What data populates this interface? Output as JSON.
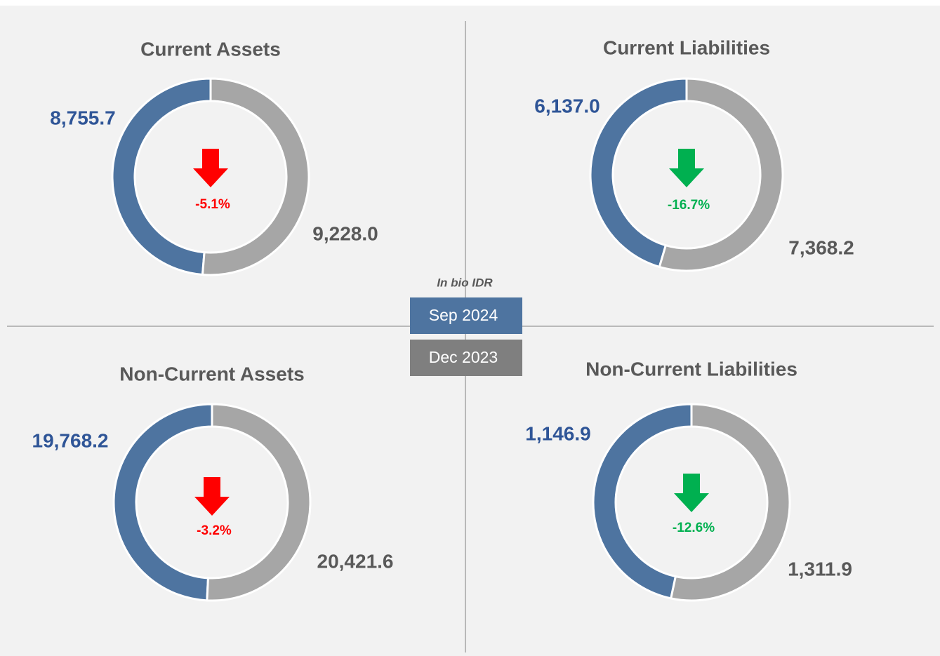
{
  "legend": {
    "note": "In bio IDR",
    "entries": [
      {
        "name": "Sep 2024",
        "color": "#4e74a0"
      },
      {
        "name": "Dec 2023",
        "color": "#a6a6a6"
      }
    ]
  },
  "chart_data": [
    {
      "type": "pie",
      "title": "Current Assets",
      "values": [
        8755.7,
        9228.0
      ],
      "value_labels": [
        "8,755.7",
        "9,228.0"
      ],
      "change": -5.1,
      "change_label": "-5.1%",
      "change_color": "#ff0000"
    },
    {
      "type": "pie",
      "title": "Current Liabilities",
      "values": [
        6137.0,
        7368.2
      ],
      "value_labels": [
        "6,137.0",
        "7,368.2"
      ],
      "change": -16.7,
      "change_label": "-16.7%",
      "change_color": "#00b050"
    },
    {
      "type": "pie",
      "title": "Non-Current Assets",
      "values": [
        19768.2,
        20421.6
      ],
      "value_labels": [
        "19,768.2",
        "20,421.6"
      ],
      "change": -3.2,
      "change_label": "-3.2%",
      "change_color": "#ff0000"
    },
    {
      "type": "pie",
      "title": "Non-Current Liabilities",
      "values": [
        1146.9,
        1311.9
      ],
      "value_labels": [
        "1,146.9",
        "1,311.9"
      ],
      "change": -12.6,
      "change_label": "-12.6%",
      "change_color": "#00b050"
    }
  ]
}
